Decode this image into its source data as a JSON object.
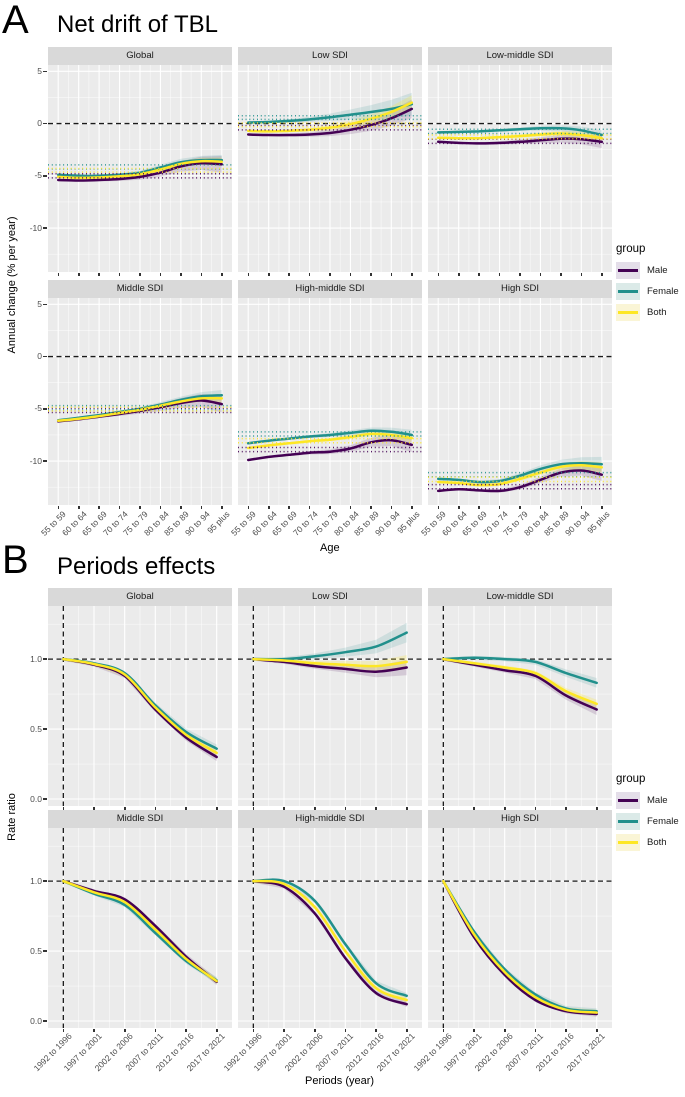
{
  "figure": {
    "panel_a_label": "A",
    "panel_a_title": "Net drift of TBL",
    "panel_b_label": "B",
    "panel_b_title": "Periods effects"
  },
  "legend": {
    "title": "group",
    "items": [
      {
        "label": "Male",
        "color": "#440154",
        "key_bg": "#E4DEE9"
      },
      {
        "label": "Female",
        "color": "#21908C",
        "key_bg": "#DBEAE8"
      },
      {
        "label": "Both",
        "color": "#FDE725",
        "key_bg": "#FAF5D6"
      }
    ]
  },
  "colors": {
    "Male": "#440154",
    "Female": "#21908C",
    "Both": "#FDE725",
    "panel_bg": "#EBEBEB",
    "strip_bg": "#D9D9D9",
    "grid": "#FFFFFF",
    "ref_line": "#1a1a1a"
  },
  "chart_data": [
    {
      "type": "line",
      "panel": "A",
      "title": "Net drift of TBL",
      "xlabel": "Age",
      "ylabel": "Annual change (% per year)",
      "legend_position": "right",
      "grid": true,
      "categories": [
        "55 to 59",
        "60 to 64",
        "65 to 69",
        "70 to 74",
        "75 to 79",
        "80 to 84",
        "85 to 89",
        "90 to 94",
        "95 plus"
      ],
      "yticks": [
        5,
        0,
        -5,
        -10
      ],
      "ytick_labels": [
        "5",
        "0",
        "-5",
        "-10"
      ],
      "ylim": [
        -14.2,
        5.6
      ],
      "ref_hline": 0,
      "facets": [
        {
          "name": "Global",
          "series": [
            {
              "name": "Male",
              "values": [
                -5.4,
                -5.45,
                -5.4,
                -5.3,
                -5.1,
                -4.7,
                -4.1,
                -3.8,
                -3.9
              ],
              "net_drift_ci": [
                -5.2,
                -4.8
              ],
              "ribbon": [
                0.1,
                0.8
              ]
            },
            {
              "name": "Female",
              "values": [
                -4.9,
                -5.0,
                -5.0,
                -4.9,
                -4.7,
                -4.2,
                -3.7,
                -3.5,
                -3.5
              ],
              "net_drift_ci": [
                -4.35,
                -3.95
              ],
              "ribbon": [
                0.1,
                0.5
              ]
            },
            {
              "name": "Both",
              "values": [
                -5.1,
                -5.2,
                -5.15,
                -5.05,
                -4.85,
                -4.4,
                -3.85,
                -3.6,
                -3.65
              ],
              "net_drift_ci": [
                -4.65,
                -4.3
              ],
              "ribbon": [
                0.1,
                0.4
              ]
            }
          ]
        },
        {
          "name": "Low SDI",
          "series": [
            {
              "name": "Male",
              "values": [
                -1.05,
                -1.1,
                -1.1,
                -1.05,
                -0.9,
                -0.6,
                -0.15,
                0.5,
                1.4
              ],
              "net_drift_ci": [
                -0.6,
                -0.2
              ],
              "ribbon": [
                0.1,
                0.9
              ]
            },
            {
              "name": "Female",
              "values": [
                0.1,
                0.15,
                0.25,
                0.4,
                0.6,
                0.85,
                1.1,
                1.4,
                1.85
              ],
              "net_drift_ci": [
                0.4,
                0.75
              ],
              "ribbon": [
                0.1,
                1.1
              ]
            },
            {
              "name": "Both",
              "values": [
                -0.7,
                -0.75,
                -0.7,
                -0.6,
                -0.4,
                -0.05,
                0.45,
                1.1,
                2.0
              ],
              "net_drift_ci": [
                -0.3,
                0.05
              ],
              "ribbon": [
                0.1,
                0.7
              ]
            }
          ]
        },
        {
          "name": "Low-middle SDI",
          "series": [
            {
              "name": "Male",
              "values": [
                -1.75,
                -1.85,
                -1.9,
                -1.85,
                -1.75,
                -1.6,
                -1.45,
                -1.5,
                -1.75
              ],
              "net_drift_ci": [
                -1.9,
                -1.5
              ],
              "ribbon": [
                0.08,
                0.6
              ]
            },
            {
              "name": "Female",
              "values": [
                -0.85,
                -0.8,
                -0.75,
                -0.65,
                -0.55,
                -0.45,
                -0.45,
                -0.65,
                -1.1
              ],
              "net_drift_ci": [
                -0.95,
                -0.55
              ],
              "ribbon": [
                0.08,
                0.45
              ]
            },
            {
              "name": "Both",
              "values": [
                -1.35,
                -1.4,
                -1.4,
                -1.3,
                -1.2,
                -1.05,
                -0.95,
                -1.1,
                -1.4
              ],
              "net_drift_ci": [
                -1.45,
                -1.1
              ],
              "ribbon": [
                0.08,
                0.4
              ]
            }
          ]
        },
        {
          "name": "Middle SDI",
          "series": [
            {
              "name": "Male",
              "values": [
                -6.2,
                -6.0,
                -5.75,
                -5.5,
                -5.2,
                -4.85,
                -4.45,
                -4.2,
                -4.55
              ],
              "net_drift_ci": [
                -5.35,
                -4.95
              ],
              "ribbon": [
                0.08,
                0.8
              ]
            },
            {
              "name": "Female",
              "values": [
                -6.1,
                -5.85,
                -5.6,
                -5.3,
                -5.0,
                -4.6,
                -4.15,
                -3.8,
                -3.7
              ],
              "net_drift_ci": [
                -5.1,
                -4.7
              ],
              "ribbon": [
                0.08,
                0.5
              ]
            },
            {
              "name": "Both",
              "values": [
                -6.15,
                -5.95,
                -5.7,
                -5.4,
                -5.1,
                -4.7,
                -4.3,
                -4.0,
                -4.0
              ],
              "net_drift_ci": [
                -5.2,
                -4.85
              ],
              "ribbon": [
                0.08,
                0.4
              ]
            }
          ]
        },
        {
          "name": "High-middle SDI",
          "series": [
            {
              "name": "Male",
              "values": [
                -9.9,
                -9.6,
                -9.4,
                -9.2,
                -9.1,
                -8.8,
                -8.2,
                -8.0,
                -8.45
              ],
              "net_drift_ci": [
                -9.1,
                -8.7
              ],
              "ribbon": [
                0.08,
                0.7
              ]
            },
            {
              "name": "Female",
              "values": [
                -8.3,
                -8.05,
                -7.85,
                -7.65,
                -7.5,
                -7.3,
                -7.1,
                -7.2,
                -7.5
              ],
              "net_drift_ci": [
                -7.6,
                -7.2
              ],
              "ribbon": [
                0.08,
                0.5
              ]
            },
            {
              "name": "Both",
              "values": [
                -8.75,
                -8.5,
                -8.3,
                -8.1,
                -7.95,
                -7.7,
                -7.4,
                -7.5,
                -7.8
              ],
              "net_drift_ci": [
                -8.25,
                -7.85
              ],
              "ribbon": [
                0.08,
                0.4
              ]
            }
          ]
        },
        {
          "name": "High SDI",
          "series": [
            {
              "name": "Male",
              "values": [
                -12.85,
                -12.7,
                -12.8,
                -12.85,
                -12.5,
                -11.8,
                -11.1,
                -10.9,
                -11.3
              ],
              "net_drift_ci": [
                -12.65,
                -12.25
              ],
              "ribbon": [
                0.1,
                0.6
              ]
            },
            {
              "name": "Female",
              "values": [
                -11.7,
                -11.8,
                -12.0,
                -11.9,
                -11.4,
                -10.75,
                -10.3,
                -10.2,
                -10.3
              ],
              "net_drift_ci": [
                -11.5,
                -11.1
              ],
              "ribbon": [
                0.1,
                0.7
              ]
            },
            {
              "name": "Both",
              "values": [
                -12.0,
                -12.1,
                -12.3,
                -12.2,
                -11.7,
                -11.1,
                -10.55,
                -10.4,
                -10.6
              ],
              "net_drift_ci": [
                -11.95,
                -11.55
              ],
              "ribbon": [
                0.1,
                0.5
              ]
            }
          ]
        }
      ]
    },
    {
      "type": "line",
      "panel": "B",
      "title": "Periods effects",
      "xlabel": "Periods (year)",
      "ylabel": "Rate ratio",
      "legend_position": "right",
      "grid": true,
      "categories": [
        "1992 to 1996",
        "1997 to 2001",
        "2002 to 2006",
        "2007 to 2011",
        "2012 to 2016",
        "2017 to 2021"
      ],
      "yticks": [
        1.0,
        0.5,
        0.0
      ],
      "ytick_labels": [
        "1.0",
        "0.5",
        "0.0"
      ],
      "ylim": [
        -0.05,
        1.38
      ],
      "ref_hline": 1.0,
      "ref_vline_category": "1992 to 1996",
      "facets": [
        {
          "name": "Global",
          "series": [
            {
              "name": "Male",
              "values": [
                1.0,
                0.96,
                0.88,
                0.64,
                0.44,
                0.3
              ],
              "ribbon": [
                0.012,
                0.03
              ]
            },
            {
              "name": "Female",
              "values": [
                1.0,
                0.97,
                0.9,
                0.67,
                0.48,
                0.36
              ],
              "ribbon": [
                0.012,
                0.03
              ]
            },
            {
              "name": "Both",
              "values": [
                1.0,
                0.965,
                0.89,
                0.655,
                0.46,
                0.33
              ],
              "ribbon": [
                0.012,
                0.025
              ]
            }
          ]
        },
        {
          "name": "Low SDI",
          "series": [
            {
              "name": "Male",
              "values": [
                1.0,
                0.98,
                0.95,
                0.93,
                0.91,
                0.94
              ],
              "ribbon": [
                0.012,
                0.055
              ]
            },
            {
              "name": "Female",
              "values": [
                1.0,
                1.0,
                1.02,
                1.05,
                1.09,
                1.19
              ],
              "ribbon": [
                0.012,
                0.07
              ]
            },
            {
              "name": "Both",
              "values": [
                1.0,
                0.99,
                0.97,
                0.96,
                0.95,
                0.98
              ],
              "ribbon": [
                0.012,
                0.05
              ]
            }
          ]
        },
        {
          "name": "Low-middle SDI",
          "series": [
            {
              "name": "Male",
              "values": [
                1.0,
                0.96,
                0.92,
                0.88,
                0.74,
                0.64
              ],
              "ribbon": [
                0.012,
                0.04
              ]
            },
            {
              "name": "Female",
              "values": [
                1.0,
                1.01,
                1.0,
                0.98,
                0.9,
                0.83
              ],
              "ribbon": [
                0.012,
                0.035
              ]
            },
            {
              "name": "Both",
              "values": [
                1.0,
                0.97,
                0.94,
                0.9,
                0.77,
                0.68
              ],
              "ribbon": [
                0.012,
                0.03
              ]
            }
          ]
        },
        {
          "name": "Middle SDI",
          "series": [
            {
              "name": "Male",
              "values": [
                1.0,
                0.93,
                0.87,
                0.68,
                0.46,
                0.28
              ],
              "ribbon": [
                0.012,
                0.025
              ]
            },
            {
              "name": "Female",
              "values": [
                1.0,
                0.91,
                0.83,
                0.63,
                0.43,
                0.29
              ],
              "ribbon": [
                0.012,
                0.025
              ]
            },
            {
              "name": "Both",
              "values": [
                1.0,
                0.92,
                0.85,
                0.655,
                0.445,
                0.285
              ],
              "ribbon": [
                0.012,
                0.02
              ]
            }
          ]
        },
        {
          "name": "High-middle SDI",
          "series": [
            {
              "name": "Male",
              "values": [
                1.0,
                0.96,
                0.77,
                0.45,
                0.2,
                0.12
              ],
              "ribbon": [
                0.012,
                0.02
              ]
            },
            {
              "name": "Female",
              "values": [
                1.0,
                1.0,
                0.86,
                0.55,
                0.27,
                0.18
              ],
              "ribbon": [
                0.012,
                0.02
              ]
            },
            {
              "name": "Both",
              "values": [
                1.0,
                0.98,
                0.815,
                0.5,
                0.235,
                0.15
              ],
              "ribbon": [
                0.012,
                0.02
              ]
            }
          ]
        },
        {
          "name": "High SDI",
          "series": [
            {
              "name": "Male",
              "values": [
                1.0,
                0.6,
                0.33,
                0.15,
                0.07,
                0.05
              ],
              "ribbon": [
                0.012,
                0.02
              ]
            },
            {
              "name": "Female",
              "values": [
                1.0,
                0.64,
                0.37,
                0.19,
                0.09,
                0.07
              ],
              "ribbon": [
                0.012,
                0.02
              ]
            },
            {
              "name": "Both",
              "values": [
                1.0,
                0.62,
                0.35,
                0.17,
                0.08,
                0.06
              ],
              "ribbon": [
                0.012,
                0.02
              ]
            }
          ]
        }
      ]
    }
  ]
}
